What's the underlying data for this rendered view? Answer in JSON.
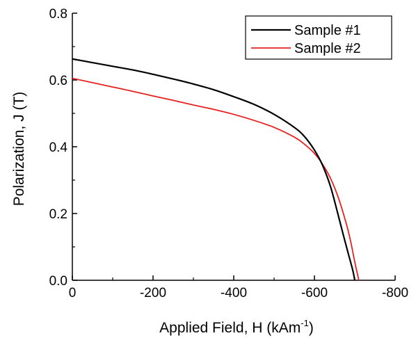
{
  "chart_data": {
    "type": "line",
    "xlabel": "Applied Field, H (kAm",
    "xlabel_superscript": "-1",
    "xlabel_suffix": ")",
    "ylabel": "Polarization, J (T)",
    "xlim": [
      0,
      -800
    ],
    "ylim": [
      0,
      0.8
    ],
    "x_ticks": [
      0,
      -200,
      -400,
      -600,
      -800
    ],
    "x_tick_labels": [
      "0",
      "-200",
      "-400",
      "-600",
      "-800"
    ],
    "y_ticks": [
      0.0,
      0.2,
      0.4,
      0.6,
      0.8
    ],
    "y_tick_labels": [
      "0.0",
      "0.2",
      "0.4",
      "0.6",
      "0.8"
    ],
    "grid": false,
    "legend_position": "top-right",
    "series": [
      {
        "name": "Sample #1",
        "color": "#000000",
        "x": [
          0,
          -50,
          -100,
          -150,
          -200,
          -250,
          -300,
          -350,
          -400,
          -450,
          -500,
          -550,
          -575,
          -600,
          -620,
          -640,
          -660,
          -675,
          -685,
          -695,
          -700
        ],
        "y": [
          0.663,
          0.652,
          0.641,
          0.63,
          0.617,
          0.603,
          0.588,
          0.571,
          0.55,
          0.527,
          0.497,
          0.458,
          0.431,
          0.39,
          0.345,
          0.28,
          0.19,
          0.12,
          0.075,
          0.03,
          0.0
        ]
      },
      {
        "name": "Sample #2",
        "color": "#e8201f",
        "x": [
          0,
          -50,
          -100,
          -150,
          -200,
          -250,
          -300,
          -350,
          -400,
          -450,
          -500,
          -550,
          -575,
          -600,
          -620,
          -640,
          -660,
          -680,
          -690,
          -700,
          -710
        ],
        "y": [
          0.605,
          0.592,
          0.579,
          0.566,
          0.552,
          0.539,
          0.525,
          0.512,
          0.497,
          0.479,
          0.458,
          0.429,
          0.408,
          0.38,
          0.348,
          0.305,
          0.245,
          0.165,
          0.115,
          0.055,
          0.0
        ]
      }
    ]
  }
}
